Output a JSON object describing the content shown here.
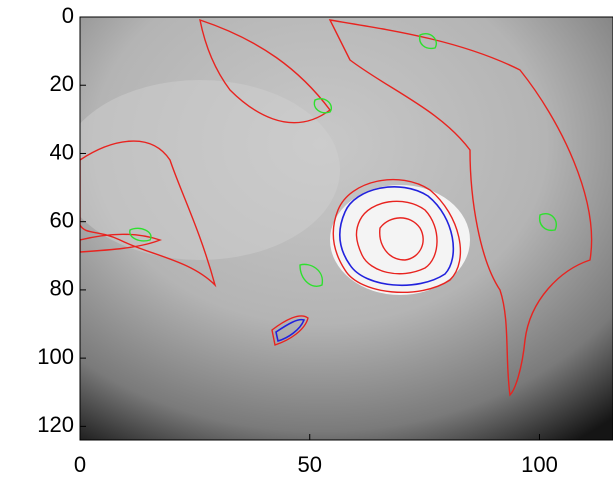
{
  "chart_data": {
    "type": "image",
    "xlim": [
      0,
      116
    ],
    "xticks": [
      0,
      50,
      100
    ],
    "ylim": [
      124,
      0
    ],
    "yticks": [
      0,
      20,
      40,
      60,
      80,
      100,
      120
    ]
  }
}
